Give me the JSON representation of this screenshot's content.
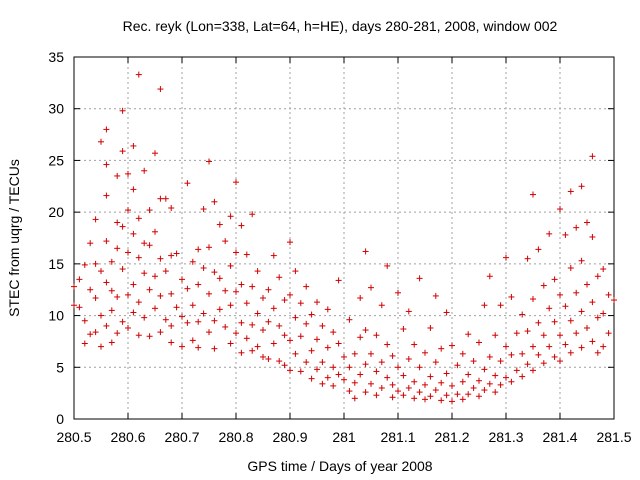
{
  "chart_data": {
    "type": "scatter",
    "title": "Rec. reyk (Lon=338, Lat=64, h=HE), days 280-281, 2008, window 002",
    "xlabel": "GPS time / Days of year 2008",
    "ylabel": "STEC from uqrg / TECUs",
    "xlim": [
      280.5,
      281.5
    ],
    "ylim": [
      0,
      35
    ],
    "xticks": [
      "280.5",
      "280.6",
      "280.7",
      "280.8",
      "280.9",
      "281",
      "281.1",
      "281.2",
      "281.3",
      "281.4",
      "281.5"
    ],
    "yticks": [
      "0",
      "5",
      "10",
      "15",
      "20",
      "25",
      "30",
      "35"
    ],
    "grid": true,
    "marker": "+",
    "color": "#d00000",
    "points": [
      [
        280.5,
        11.0
      ],
      [
        280.5,
        12.8
      ],
      [
        280.51,
        13.5
      ],
      [
        280.51,
        10.8
      ],
      [
        280.52,
        14.9
      ],
      [
        280.52,
        9.5
      ],
      [
        280.52,
        7.3
      ],
      [
        280.53,
        17.0
      ],
      [
        280.53,
        12.5
      ],
      [
        280.53,
        8.2
      ],
      [
        280.54,
        19.3
      ],
      [
        280.54,
        15.0
      ],
      [
        280.54,
        11.7
      ],
      [
        280.54,
        8.4
      ],
      [
        280.55,
        26.8
      ],
      [
        280.55,
        14.3
      ],
      [
        280.55,
        10.0
      ],
      [
        280.55,
        7.0
      ],
      [
        280.56,
        28.0
      ],
      [
        280.56,
        24.6
      ],
      [
        280.56,
        21.6
      ],
      [
        280.56,
        17.2
      ],
      [
        280.56,
        13.2
      ],
      [
        280.56,
        9.0
      ],
      [
        280.57,
        15.2
      ],
      [
        280.57,
        12.4
      ],
      [
        280.57,
        10.5
      ],
      [
        280.57,
        7.4
      ],
      [
        280.58,
        23.5
      ],
      [
        280.58,
        19.0
      ],
      [
        280.58,
        16.5
      ],
      [
        280.58,
        11.8
      ],
      [
        280.58,
        8.3
      ],
      [
        280.59,
        29.8
      ],
      [
        280.59,
        25.9
      ],
      [
        280.59,
        18.6
      ],
      [
        280.59,
        14.5
      ],
      [
        280.59,
        9.4
      ],
      [
        280.6,
        23.7
      ],
      [
        280.6,
        20.2
      ],
      [
        280.6,
        16.1
      ],
      [
        280.6,
        12.0
      ],
      [
        280.6,
        8.8
      ],
      [
        280.61,
        26.4
      ],
      [
        280.61,
        22.2
      ],
      [
        280.61,
        17.9
      ],
      [
        280.61,
        13.0
      ],
      [
        280.61,
        10.3
      ],
      [
        280.62,
        33.3
      ],
      [
        280.62,
        19.4
      ],
      [
        280.62,
        15.6
      ],
      [
        280.62,
        11.3
      ],
      [
        280.62,
        8.1
      ],
      [
        280.63,
        24.0
      ],
      [
        280.63,
        17.0
      ],
      [
        280.63,
        14.1
      ],
      [
        280.63,
        9.8
      ],
      [
        280.64,
        20.2
      ],
      [
        280.64,
        16.8
      ],
      [
        280.64,
        12.5
      ],
      [
        280.64,
        8.0
      ],
      [
        280.65,
        25.7
      ],
      [
        280.65,
        18.1
      ],
      [
        280.65,
        13.8
      ],
      [
        280.65,
        10.7
      ],
      [
        280.66,
        31.9
      ],
      [
        280.66,
        21.3
      ],
      [
        280.66,
        15.5
      ],
      [
        280.66,
        11.9
      ],
      [
        280.66,
        8.4
      ],
      [
        280.67,
        21.3
      ],
      [
        280.67,
        14.3
      ],
      [
        280.67,
        9.6
      ],
      [
        280.68,
        20.4
      ],
      [
        280.68,
        15.8
      ],
      [
        280.68,
        12.1
      ],
      [
        280.68,
        9.0
      ],
      [
        280.68,
        7.4
      ],
      [
        280.69,
        16.0
      ],
      [
        280.69,
        10.8
      ],
      [
        280.7,
        13.5
      ],
      [
        280.7,
        9.9
      ],
      [
        280.7,
        7.0
      ],
      [
        280.71,
        22.8
      ],
      [
        280.71,
        12.6
      ],
      [
        280.71,
        9.3
      ],
      [
        280.72,
        15.2
      ],
      [
        280.72,
        11.0
      ],
      [
        280.72,
        7.6
      ],
      [
        280.73,
        16.4
      ],
      [
        280.73,
        13.0
      ],
      [
        280.73,
        9.4
      ],
      [
        280.73,
        6.9
      ],
      [
        280.74,
        20.3
      ],
      [
        280.74,
        14.6
      ],
      [
        280.74,
        10.2
      ],
      [
        280.75,
        24.9
      ],
      [
        280.75,
        16.6
      ],
      [
        280.75,
        12.1
      ],
      [
        280.75,
        8.4
      ],
      [
        280.76,
        21.0
      ],
      [
        280.76,
        14.2
      ],
      [
        280.76,
        9.5
      ],
      [
        280.76,
        6.8
      ],
      [
        280.77,
        18.8
      ],
      [
        280.77,
        13.6
      ],
      [
        280.77,
        10.6
      ],
      [
        280.78,
        17.2
      ],
      [
        280.78,
        12.4
      ],
      [
        280.78,
        8.9
      ],
      [
        280.79,
        19.6
      ],
      [
        280.79,
        14.8
      ],
      [
        280.79,
        11.0
      ],
      [
        280.79,
        7.3
      ],
      [
        280.8,
        22.9
      ],
      [
        280.8,
        16.1
      ],
      [
        280.8,
        12.3
      ],
      [
        280.8,
        8.3
      ],
      [
        280.81,
        18.7
      ],
      [
        280.81,
        13.0
      ],
      [
        280.81,
        9.3
      ],
      [
        280.81,
        6.4
      ],
      [
        280.82,
        15.9
      ],
      [
        280.82,
        11.2
      ],
      [
        280.82,
        7.8
      ],
      [
        280.83,
        19.8
      ],
      [
        280.83,
        12.8
      ],
      [
        280.83,
        9.1
      ],
      [
        280.83,
        6.6
      ],
      [
        280.84,
        14.3
      ],
      [
        280.84,
        10.2
      ],
      [
        280.84,
        7.0
      ],
      [
        280.85,
        11.7
      ],
      [
        280.85,
        8.6
      ],
      [
        280.85,
        6.0
      ],
      [
        280.86,
        12.5
      ],
      [
        280.86,
        9.4
      ],
      [
        280.86,
        5.8
      ],
      [
        280.87,
        15.8
      ],
      [
        280.87,
        10.7
      ],
      [
        280.87,
        7.3
      ],
      [
        280.88,
        13.7
      ],
      [
        280.88,
        9.0
      ],
      [
        280.88,
        5.6
      ],
      [
        280.89,
        11.5
      ],
      [
        280.89,
        8.1
      ],
      [
        280.89,
        5.2
      ],
      [
        280.9,
        17.1
      ],
      [
        280.9,
        12.0
      ],
      [
        280.9,
        7.6
      ],
      [
        280.9,
        4.7
      ],
      [
        280.91,
        14.3
      ],
      [
        280.91,
        9.8
      ],
      [
        280.91,
        6.3
      ],
      [
        280.92,
        11.2
      ],
      [
        280.92,
        8.0
      ],
      [
        280.92,
        4.6
      ],
      [
        280.93,
        12.8
      ],
      [
        280.93,
        9.2
      ],
      [
        280.93,
        5.5
      ],
      [
        280.94,
        10.1
      ],
      [
        280.94,
        6.6
      ],
      [
        280.94,
        3.9
      ],
      [
        280.95,
        11.3
      ],
      [
        280.95,
        7.7
      ],
      [
        280.95,
        4.8
      ],
      [
        280.96,
        9.0
      ],
      [
        280.96,
        5.5
      ],
      [
        280.96,
        3.4
      ],
      [
        280.97,
        10.6
      ],
      [
        280.97,
        6.9
      ],
      [
        280.97,
        4.0
      ],
      [
        280.98,
        8.4
      ],
      [
        280.98,
        5.0
      ],
      [
        280.98,
        3.2
      ],
      [
        280.99,
        13.4
      ],
      [
        280.99,
        7.3
      ],
      [
        280.99,
        4.3
      ],
      [
        281.0,
        6.0
      ],
      [
        281.0,
        3.8
      ],
      [
        281.01,
        9.6
      ],
      [
        281.01,
        5.0
      ],
      [
        281.01,
        2.7
      ],
      [
        281.02,
        6.3
      ],
      [
        281.02,
        3.5
      ],
      [
        281.02,
        2.0
      ],
      [
        281.03,
        11.7
      ],
      [
        281.03,
        7.9
      ],
      [
        281.03,
        4.3
      ],
      [
        281.04,
        16.2
      ],
      [
        281.04,
        8.6
      ],
      [
        281.04,
        5.3
      ],
      [
        281.04,
        2.6
      ],
      [
        281.05,
        12.7
      ],
      [
        281.05,
        6.3
      ],
      [
        281.05,
        3.4
      ],
      [
        281.06,
        8.1
      ],
      [
        281.06,
        4.6
      ],
      [
        281.06,
        2.3
      ],
      [
        281.07,
        11.0
      ],
      [
        281.07,
        5.5
      ],
      [
        281.07,
        3.0
      ],
      [
        281.08,
        14.8
      ],
      [
        281.08,
        7.2
      ],
      [
        281.08,
        4.0
      ],
      [
        281.09,
        6.1
      ],
      [
        281.09,
        3.3
      ],
      [
        281.09,
        2.1
      ],
      [
        281.1,
        12.2
      ],
      [
        281.1,
        5.0
      ],
      [
        281.1,
        2.7
      ],
      [
        281.11,
        8.7
      ],
      [
        281.11,
        4.2
      ],
      [
        281.11,
        2.3
      ],
      [
        281.12,
        10.4
      ],
      [
        281.12,
        5.8
      ],
      [
        281.12,
        3.0
      ],
      [
        281.13,
        7.2
      ],
      [
        281.13,
        3.6
      ],
      [
        281.13,
        2.0
      ],
      [
        281.14,
        13.6
      ],
      [
        281.14,
        5.0
      ],
      [
        281.14,
        2.6
      ],
      [
        281.15,
        6.4
      ],
      [
        281.15,
        3.3
      ],
      [
        281.15,
        1.9
      ],
      [
        281.16,
        8.8
      ],
      [
        281.16,
        4.1
      ],
      [
        281.16,
        2.2
      ],
      [
        281.17,
        11.9
      ],
      [
        281.17,
        5.5
      ],
      [
        281.17,
        2.8
      ],
      [
        281.18,
        6.8
      ],
      [
        281.18,
        3.5
      ],
      [
        281.18,
        1.8
      ],
      [
        281.19,
        10.3
      ],
      [
        281.19,
        4.4
      ],
      [
        281.19,
        2.3
      ],
      [
        281.2,
        7.1
      ],
      [
        281.2,
        3.2
      ],
      [
        281.2,
        1.7
      ],
      [
        281.21,
        5.2
      ],
      [
        281.21,
        2.4
      ],
      [
        281.22,
        6.3
      ],
      [
        281.22,
        3.6
      ],
      [
        281.22,
        1.9
      ],
      [
        281.23,
        8.2
      ],
      [
        281.23,
        4.3
      ],
      [
        281.23,
        2.4
      ],
      [
        281.24,
        5.6
      ],
      [
        281.24,
        3.0
      ],
      [
        281.25,
        7.4
      ],
      [
        281.25,
        3.7
      ],
      [
        281.25,
        2.2
      ],
      [
        281.26,
        11.0
      ],
      [
        281.26,
        4.8
      ],
      [
        281.26,
        2.8
      ],
      [
        281.27,
        13.8
      ],
      [
        281.27,
        6.0
      ],
      [
        281.27,
        3.4
      ],
      [
        281.28,
        8.1
      ],
      [
        281.28,
        4.2
      ],
      [
        281.28,
        2.6
      ],
      [
        281.29,
        11.0
      ],
      [
        281.29,
        5.6
      ],
      [
        281.29,
        3.3
      ],
      [
        281.3,
        15.6
      ],
      [
        281.3,
        7.0
      ],
      [
        281.3,
        4.0
      ],
      [
        281.31,
        11.8
      ],
      [
        281.31,
        6.2
      ],
      [
        281.31,
        3.6
      ],
      [
        281.32,
        8.3
      ],
      [
        281.32,
        4.7
      ],
      [
        281.33,
        10.1
      ],
      [
        281.33,
        6.3
      ],
      [
        281.33,
        4.1
      ],
      [
        281.34,
        15.5
      ],
      [
        281.34,
        8.5
      ],
      [
        281.34,
        5.3
      ],
      [
        281.35,
        21.7
      ],
      [
        281.35,
        11.6
      ],
      [
        281.35,
        7.0
      ],
      [
        281.35,
        4.7
      ],
      [
        281.36,
        16.4
      ],
      [
        281.36,
        9.3
      ],
      [
        281.36,
        6.2
      ],
      [
        281.37,
        12.9
      ],
      [
        281.37,
        8.1
      ],
      [
        281.37,
        5.4
      ],
      [
        281.38,
        17.9
      ],
      [
        281.38,
        10.7
      ],
      [
        281.38,
        7.0
      ],
      [
        281.39,
        13.5
      ],
      [
        281.39,
        9.4
      ],
      [
        281.39,
        6.0
      ],
      [
        281.4,
        20.3
      ],
      [
        281.4,
        12.0
      ],
      [
        281.4,
        8.1
      ],
      [
        281.4,
        5.6
      ],
      [
        281.41,
        17.8
      ],
      [
        281.41,
        10.9
      ],
      [
        281.41,
        7.2
      ],
      [
        281.42,
        22.0
      ],
      [
        281.42,
        14.6
      ],
      [
        281.42,
        9.5
      ],
      [
        281.42,
        6.4
      ],
      [
        281.43,
        18.5
      ],
      [
        281.43,
        12.2
      ],
      [
        281.43,
        8.3
      ],
      [
        281.44,
        22.5
      ],
      [
        281.44,
        15.3
      ],
      [
        281.44,
        10.4
      ],
      [
        281.44,
        6.9
      ],
      [
        281.45,
        19.0
      ],
      [
        281.45,
        13.0
      ],
      [
        281.45,
        8.8
      ],
      [
        281.46,
        25.4
      ],
      [
        281.46,
        17.6
      ],
      [
        281.46,
        11.3
      ],
      [
        281.46,
        7.5
      ],
      [
        281.47,
        13.8
      ],
      [
        281.47,
        9.8
      ],
      [
        281.47,
        6.4
      ],
      [
        281.48,
        14.5
      ],
      [
        281.48,
        10.2
      ],
      [
        281.48,
        7.0
      ],
      [
        281.49,
        12.0
      ],
      [
        281.49,
        8.3
      ],
      [
        281.5,
        11.5
      ]
    ]
  }
}
